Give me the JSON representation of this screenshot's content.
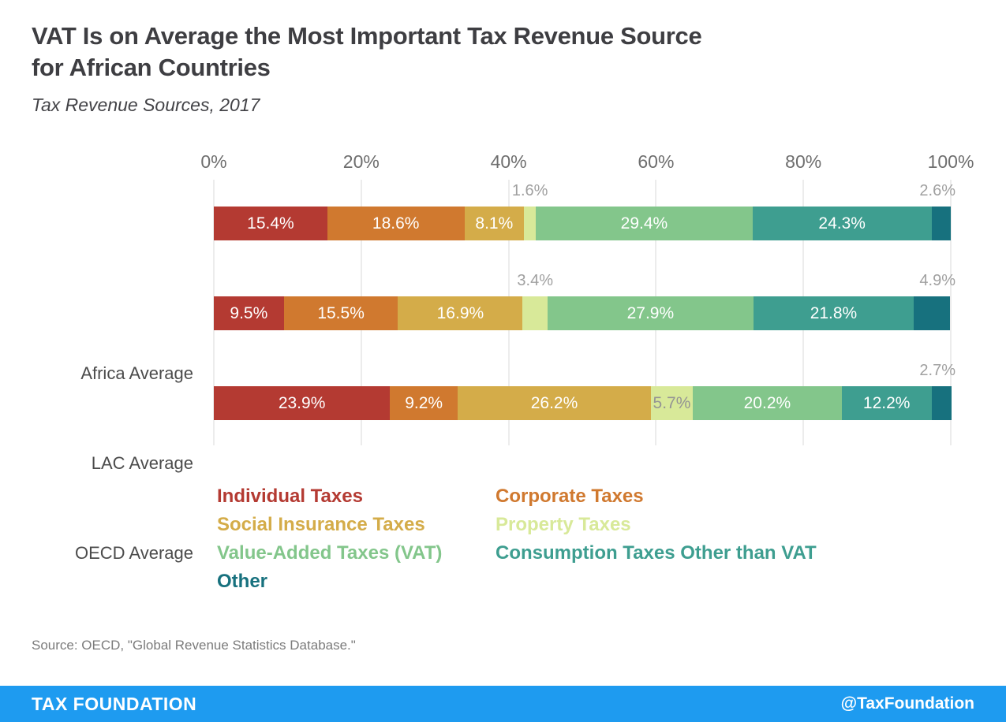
{
  "page": {
    "title": "VAT Is on Average the Most Important Tax Revenue Source\nfor African Countries",
    "subtitle": "Tax Revenue Sources, 2017",
    "source": "Source: OECD, \"Global Revenue Statistics Database.\"",
    "footer": {
      "brand": "TAX FOUNDATION",
      "handle": "@TaxFoundation",
      "bar_color": "#1e9bf0"
    }
  },
  "chart_data": {
    "type": "bar",
    "variant": "horizontal-stacked",
    "title": "VAT Is on Average the Most Important Tax Revenue Source for African Countries",
    "subtitle": "Tax Revenue Sources, 2017",
    "unit": "%",
    "categories": [
      "Africa Average",
      "LAC Average",
      "OECD Average"
    ],
    "series": [
      {
        "name": "Individual Taxes",
        "color": "#b43a32",
        "values": [
          15.4,
          9.5,
          23.9
        ]
      },
      {
        "name": "Corporate Taxes",
        "color": "#d0792f",
        "values": [
          18.6,
          15.5,
          9.2
        ]
      },
      {
        "name": "Social Insurance Taxes",
        "color": "#d4ac49",
        "values": [
          8.1,
          16.9,
          26.2
        ]
      },
      {
        "name": "Property Taxes",
        "color": "#d8e999",
        "values": [
          1.6,
          3.4,
          5.7
        ]
      },
      {
        "name": "Value-Added Taxes (VAT)",
        "color": "#83c68b",
        "values": [
          29.4,
          27.9,
          20.2
        ]
      },
      {
        "name": "Consumption Taxes Other than VAT",
        "color": "#3e9e90",
        "values": [
          24.3,
          21.8,
          12.2
        ]
      },
      {
        "name": "Other",
        "color": "#17717e",
        "values": [
          2.6,
          4.9,
          2.7
        ]
      }
    ],
    "x_axis": {
      "ticks": [
        "0%",
        "20%",
        "40%",
        "60%",
        "80%",
        "100%"
      ],
      "range": [
        0,
        100
      ],
      "position": "top",
      "grid": true
    },
    "label_placement": [
      [
        "inside",
        "inside",
        "inside",
        "above",
        "inside",
        "inside",
        "above"
      ],
      [
        "inside",
        "inside",
        "inside",
        "above",
        "inside",
        "inside",
        "above"
      ],
      [
        "inside",
        "inside",
        "inside",
        "inside-muted",
        "inside",
        "inside",
        "above"
      ]
    ],
    "legend_position": "bottom",
    "grid_color": "#d9d9d9"
  }
}
